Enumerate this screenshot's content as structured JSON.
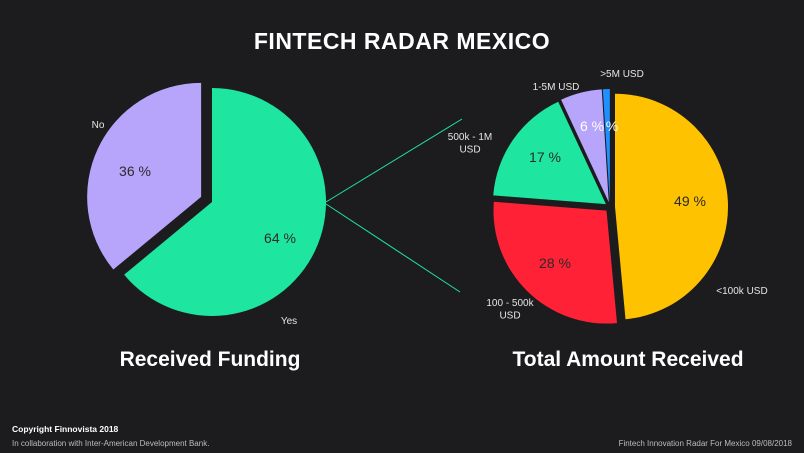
{
  "header": {
    "title": "FINTECH RADAR MEXICO"
  },
  "footer": {
    "copyright": "Copyright Finnovista 2018",
    "collaboration": "In collaboration with Inter-American Development Bank.",
    "source_note": "Fintech Innovation Radar For Mexico 09/08/2018"
  },
  "chart_data": [
    {
      "type": "pie",
      "title": "Received Funding",
      "slices": [
        {
          "label": "Yes",
          "value": 64,
          "value_label": "64 %",
          "color": "#1ee6a0",
          "exploded": false
        },
        {
          "label": "No",
          "value": 36,
          "value_label": "36 %",
          "color": "#b7a4fb",
          "exploded": true
        }
      ],
      "connector_color": "#1ee6a0"
    },
    {
      "type": "pie",
      "title": "Total Amount Received",
      "slices": [
        {
          "label": "<100k USD",
          "value": 49,
          "value_label": "49 %",
          "color": "#ffc200"
        },
        {
          "label": "100 - 500k USD",
          "value": 28,
          "value_label": "28 %",
          "color": "#ff2236"
        },
        {
          "label": "500k - 1M USD",
          "value": 17,
          "value_label": "17 %",
          "color": "#1ee6a0"
        },
        {
          "label": "1-5M USD",
          "value": 6,
          "value_label": "6 %",
          "color": "#b7a4fb"
        },
        {
          "label": ">5M USD",
          "value": 1,
          "value_label": "%",
          "color": "#1e90ff"
        }
      ]
    }
  ]
}
